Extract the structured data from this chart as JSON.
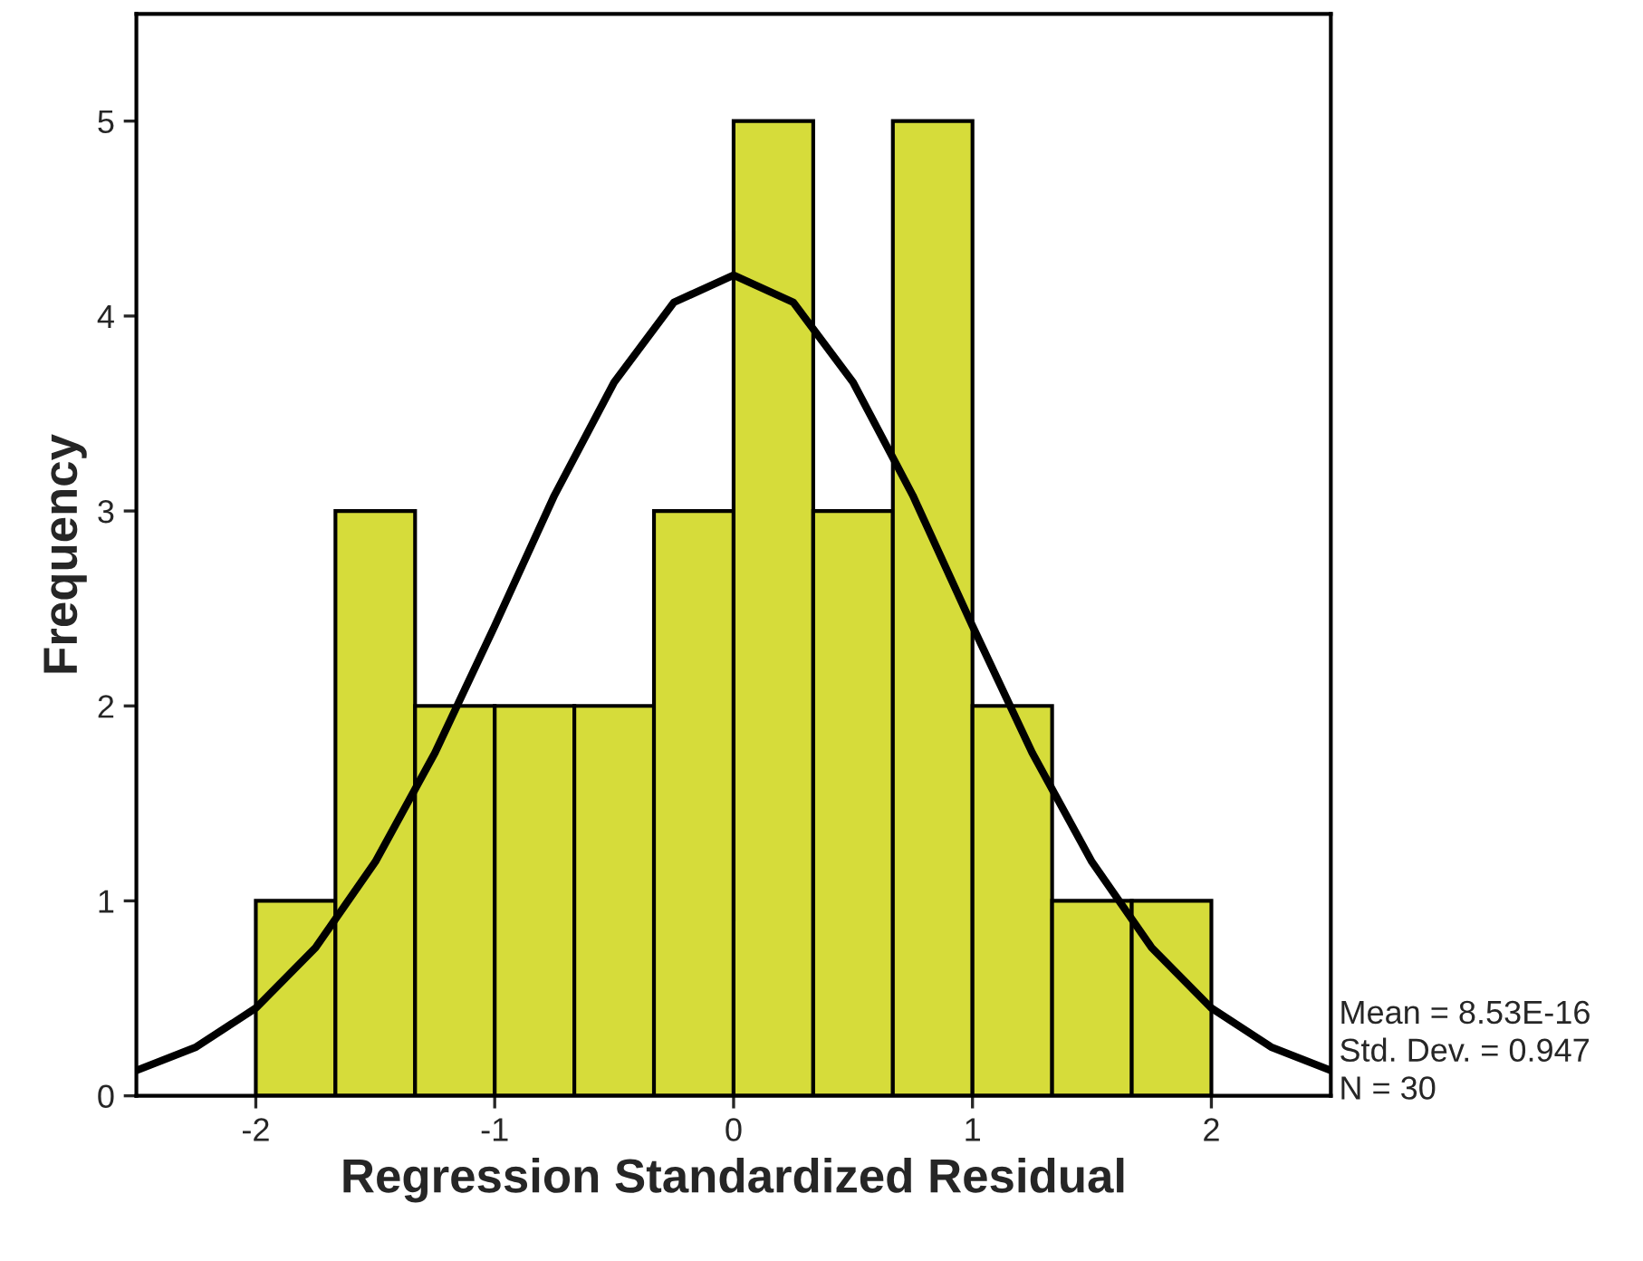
{
  "chart_data": {
    "type": "histogram",
    "xlabel": "Regression Standardized Residual",
    "ylabel": "Frequency",
    "bins": [
      -2,
      -1.6667,
      -1.3333,
      -1,
      -0.6667,
      -0.3333,
      0,
      0.3333,
      0.6667,
      1,
      1.3333,
      1.6667,
      2
    ],
    "values": [
      1,
      3,
      2,
      2,
      2,
      3,
      5,
      3,
      5,
      2,
      1,
      1
    ],
    "color": "#d6dc3a",
    "series": [
      {
        "type": "line",
        "color": "#000000",
        "x": [
          -2.5,
          -2.25,
          -2.0,
          -1.75,
          -1.5,
          -1.25,
          -1.0,
          -0.75,
          -0.5,
          -0.25,
          0,
          0.25,
          0.5,
          0.75,
          1.0,
          1.25,
          1.5,
          1.75,
          2.0,
          2.25,
          2.5
        ],
        "values": [
          0.13,
          0.25,
          0.45,
          0.76,
          1.2,
          1.76,
          2.41,
          3.08,
          3.66,
          4.07,
          4.21,
          4.07,
          3.66,
          3.08,
          2.41,
          1.76,
          1.2,
          0.76,
          0.45,
          0.25,
          0.13
        ]
      }
    ],
    "xlim": [
      -2.5,
      2.5
    ],
    "ylim": [
      0,
      5.55
    ],
    "xticks": [
      -2,
      -1,
      0,
      1,
      2
    ],
    "yticks": [
      0,
      1,
      2,
      3,
      4,
      5
    ],
    "annotations": [
      "Mean = 8.53E-16",
      "Std. Dev. = 0.947",
      "N = 30"
    ]
  }
}
